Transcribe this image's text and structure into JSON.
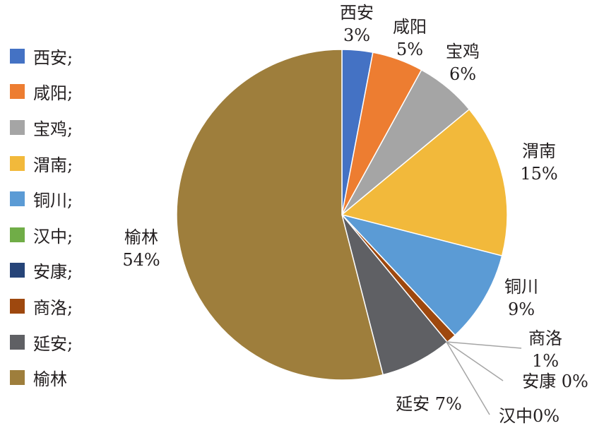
{
  "chart_data": {
    "type": "pie",
    "categories": [
      "西安",
      "咸阳",
      "宝鸡",
      "渭南",
      "铜川",
      "汉中",
      "安康",
      "商洛",
      "延安",
      "榆林"
    ],
    "values": [
      3,
      5,
      6,
      15,
      9,
      0,
      0,
      1,
      7,
      54
    ],
    "colors": [
      "#4472c4",
      "#ed7d31",
      "#a5a5a5",
      "#f2b93b",
      "#5b9bd5",
      "#70ad47",
      "#264478",
      "#9e480e",
      "#5f6064",
      "#9e7e3c"
    ],
    "legend_labels": [
      "西安;",
      "咸阳;",
      "宝鸡;",
      "渭南;",
      "铜川;",
      "汉中;",
      "安康;",
      "商洛;",
      "延安;",
      "榆林"
    ],
    "label_lines": [
      [
        "西安",
        "3%"
      ],
      [
        "咸阳",
        "5%"
      ],
      [
        "宝鸡",
        "6%"
      ],
      [
        "渭南",
        "15%"
      ],
      [
        "铜川",
        "9%"
      ],
      [
        "汉中0%"
      ],
      [
        "安康 0%"
      ],
      [
        "商洛",
        "1%"
      ],
      [
        "延安 7%"
      ],
      [
        "榆林",
        "54%"
      ]
    ],
    "legend_position": "left"
  }
}
